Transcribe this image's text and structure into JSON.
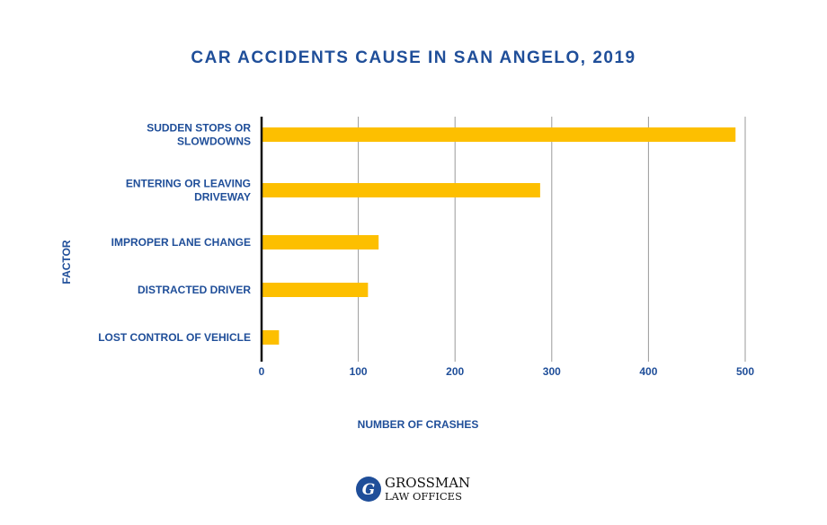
{
  "chart_data": {
    "type": "bar",
    "orientation": "horizontal",
    "title": "CAR ACCIDENTS CAUSE IN SAN ANGELO, 2019",
    "xlabel": "NUMBER OF CRASHES",
    "ylabel": "FACTOR",
    "categories": [
      [
        "SUDDEN STOPS OR",
        "SLOWDOWNS"
      ],
      [
        "ENTERING OR LEAVING",
        "DRIVEWAY"
      ],
      [
        "IMPROPER LANE CHANGE"
      ],
      [
        "DISTRACTED DRIVER"
      ],
      [
        "LOST CONTROL OF VEHICLE"
      ]
    ],
    "values": [
      490,
      288,
      121,
      110,
      18
    ],
    "xlim": [
      0,
      500
    ],
    "xticks": [
      "0",
      "100",
      "200",
      "300",
      "400",
      "500"
    ],
    "grid": "vertical",
    "legend": "none"
  },
  "colors": {
    "bar": "#FDBF00",
    "text": "#1F4E99",
    "grid": "#9A9A9A",
    "axis": "#111111"
  },
  "logo": {
    "mark": "G",
    "line1": "GROSSMAN",
    "line2": "LAW OFFICES"
  }
}
